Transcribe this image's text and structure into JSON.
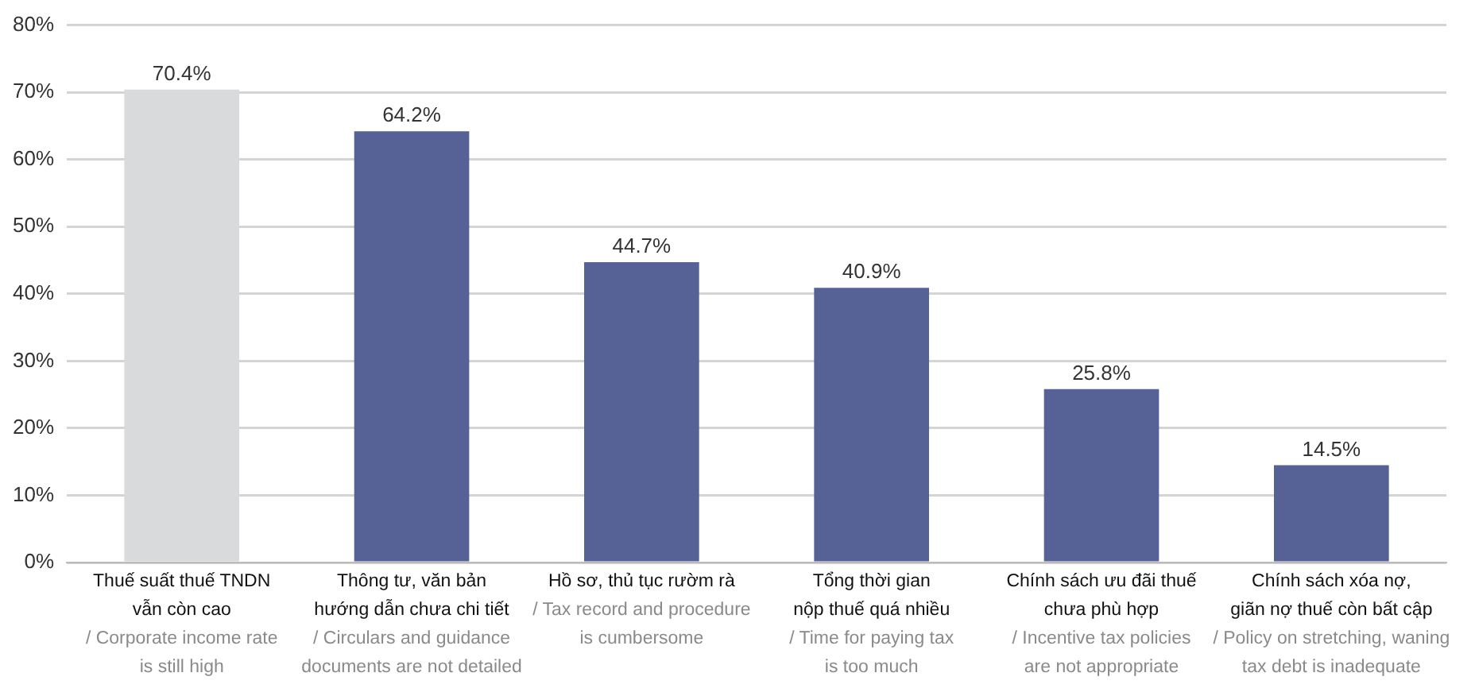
{
  "chart_data": {
    "type": "bar",
    "categories": [
      "Thuế suất thuế TNDN\nvẫn còn cao\n/ Corporate income rate\nis still high",
      "Thông tư, văn bản\nhướng dẫn chưa chi tiết\n/ Circulars and guidance\ndocuments are not detailed",
      "Hồ sơ, thủ tục rườm rà\n/ Tax record and procedure\nis cumbersome",
      "Tổng thời gian\nnộp thuế quá nhiều\n/ Time for paying tax\nis too much",
      "Chính sách ưu đãi thuế\nchưa phù hợp\n/ Incentive tax policies\nare not appropriate",
      "Chính sách xóa nợ,\ngiãn nợ thuế còn bất cập\n/ Policy on stretching, waning\ntax debt is inadequate"
    ],
    "values": [
      70.4,
      64.2,
      44.7,
      40.9,
      25.8,
      14.5
    ],
    "value_labels": [
      "70.4%",
      "64.2%",
      "44.7%",
      "40.9%",
      "25.8%",
      "14.5%"
    ],
    "colors": [
      "#d9dadb",
      "#566196",
      "#566196",
      "#566196",
      "#566196",
      "#566196"
    ],
    "ylim": [
      0,
      80
    ],
    "yticks": [
      {
        "value": 0,
        "label": "0%"
      },
      {
        "value": 10,
        "label": "10%"
      },
      {
        "value": 20,
        "label": "20%"
      },
      {
        "value": 30,
        "label": "30%"
      },
      {
        "value": 40,
        "label": "40%"
      },
      {
        "value": 50,
        "label": "50%"
      },
      {
        "value": 60,
        "label": "60%"
      },
      {
        "value": 70,
        "label": "70%"
      },
      {
        "value": 80,
        "label": "80%"
      }
    ],
    "grid": "y",
    "legend": false
  }
}
